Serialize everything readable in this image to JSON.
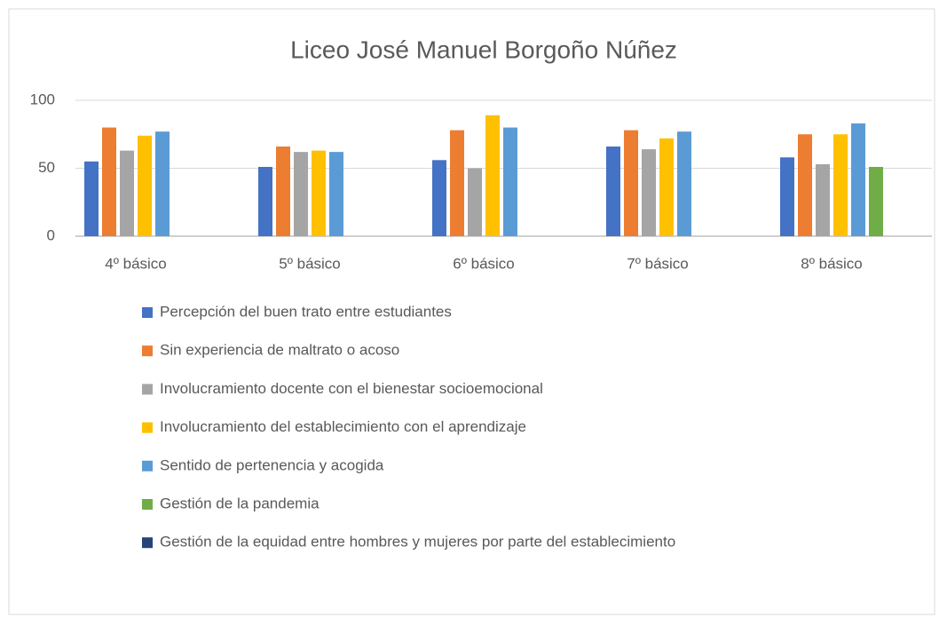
{
  "chart_data": {
    "type": "bar",
    "title": "Liceo José Manuel Borgoño Núñez",
    "categories": [
      "4º básico",
      "5º básico",
      "6º básico",
      "7º básico",
      "8º básico"
    ],
    "series": [
      {
        "name": "Percepción del buen trato entre estudiantes",
        "color": "#4472c4",
        "values": [
          55,
          51,
          56,
          66,
          58
        ]
      },
      {
        "name": "Sin experiencia de maltrato o acoso",
        "color": "#ed7d31",
        "values": [
          80,
          66,
          78,
          78,
          75
        ]
      },
      {
        "name": "Involucramiento docente con el bienestar socioemocional",
        "color": "#a5a5a5",
        "values": [
          63,
          62,
          50,
          64,
          53
        ]
      },
      {
        "name": "Involucramiento del establecimiento con el aprendizaje",
        "color": "#ffc000",
        "values": [
          74,
          63,
          89,
          72,
          75
        ]
      },
      {
        "name": "Sentido de pertenencia y acogida",
        "color": "#5b9bd5",
        "values": [
          77,
          62,
          80,
          77,
          83
        ]
      },
      {
        "name": "Gestión de la pandemia",
        "color": "#70ad47",
        "values": [
          null,
          null,
          null,
          null,
          51
        ]
      },
      {
        "name": "Gestión de la equidad entre hombres y mujeres por parte del establecimiento",
        "color": "#264478",
        "values": [
          null,
          null,
          null,
          null,
          null
        ]
      }
    ],
    "ylim": [
      0,
      100
    ],
    "yticks": [
      0,
      50,
      100
    ],
    "grid": true,
    "legend": "bottom"
  }
}
